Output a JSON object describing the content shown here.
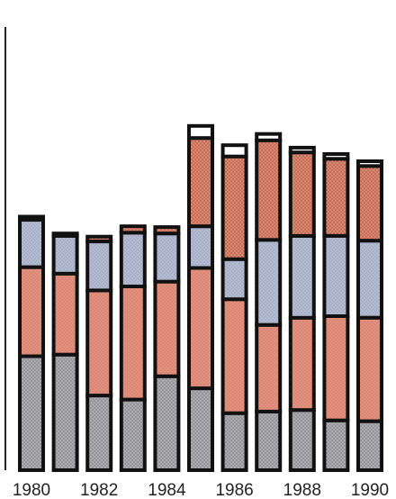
{
  "chart_data": {
    "type": "bar",
    "stacked": true,
    "x": [
      1980,
      1981,
      1982,
      1983,
      1984,
      1985,
      1986,
      1987,
      1988,
      1989,
      1990
    ],
    "x_tick_labels": [
      "1980",
      "1982",
      "1984",
      "1986",
      "1988",
      "1990"
    ],
    "series": [
      {
        "values": [
          14.2,
          14.4,
          9.3,
          8.8,
          11.7,
          10.2,
          7.1,
          7.3,
          7.5,
          6.2,
          6.1
        ]
      },
      {
        "values": [
          11.1,
          10.1,
          13.1,
          14.1,
          11.8,
          15.0,
          14.2,
          10.8,
          11.5,
          13.0,
          12.9
        ]
      },
      {
        "values": [
          5.9,
          4.7,
          6.1,
          6.7,
          6.0,
          5.2,
          5.0,
          10.6,
          10.2,
          10.0,
          9.6
        ]
      },
      {
        "values": [
          0.4,
          0.3,
          0.6,
          0.8,
          0.8,
          11.0,
          12.8,
          12.4,
          10.4,
          9.6,
          9.3
        ]
      },
      {
        "values": [
          0.0,
          0.0,
          0.0,
          0.0,
          0.0,
          1.5,
          1.4,
          0.8,
          0.6,
          0.6,
          0.6
        ]
      }
    ],
    "colors": {
      "series_fill": [
        "#a9a9ad",
        "#e0907e",
        "#b3bbd1",
        "#d9866f",
        "#ffffff"
      ],
      "dots": [
        "#7d7e84",
        "#d57c67",
        "#9aa3ba",
        "#a85240",
        "#ffffff"
      ],
      "outline": "#111111"
    },
    "ylim": [
      0,
      55
    ],
    "grid": false,
    "legend": "none"
  }
}
